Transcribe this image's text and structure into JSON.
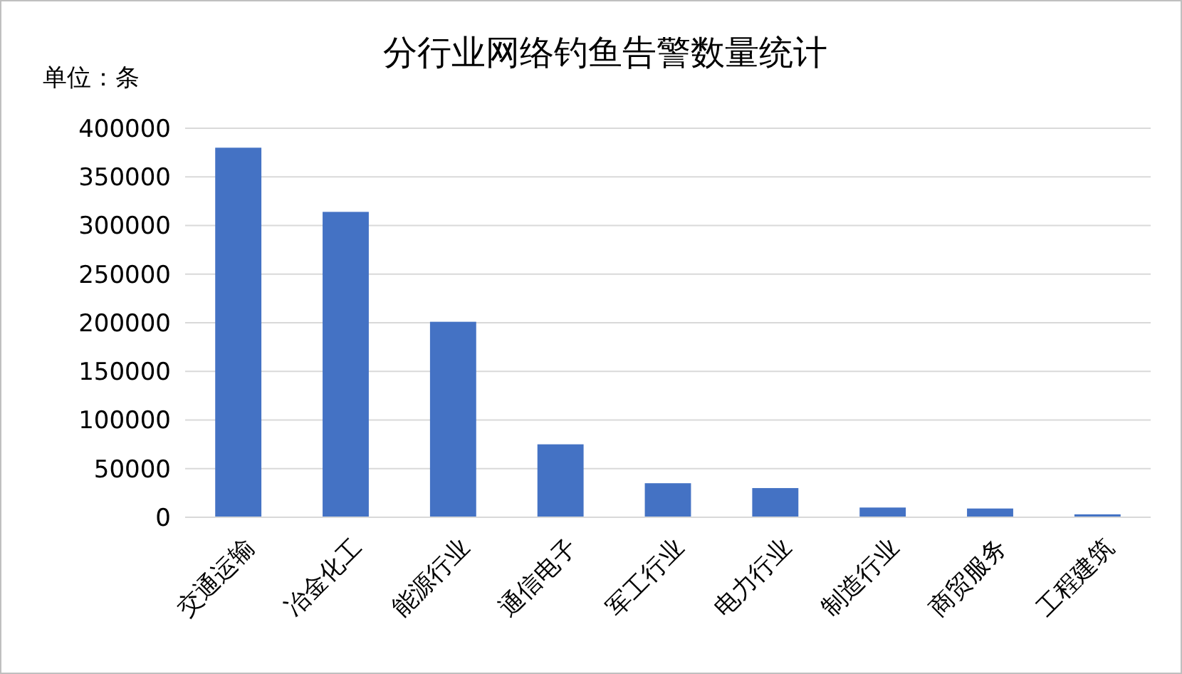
{
  "chart_data": {
    "type": "bar",
    "title": "分行业网络钓鱼告警数量统计",
    "ylabel": "单位：条",
    "categories": [
      "交通运输",
      "冶金化工",
      "能源行业",
      "通信电子",
      "军工行业",
      "电力行业",
      "制造行业",
      "商贸服务",
      "工程建筑"
    ],
    "values": [
      380000,
      314000,
      201000,
      75000,
      35000,
      30000,
      10000,
      9000,
      3000
    ],
    "color": "#4472c4",
    "ylim": [
      0,
      400000
    ],
    "yticks": [
      0,
      50000,
      100000,
      150000,
      200000,
      250000,
      300000,
      350000,
      400000
    ],
    "grid": "y"
  }
}
